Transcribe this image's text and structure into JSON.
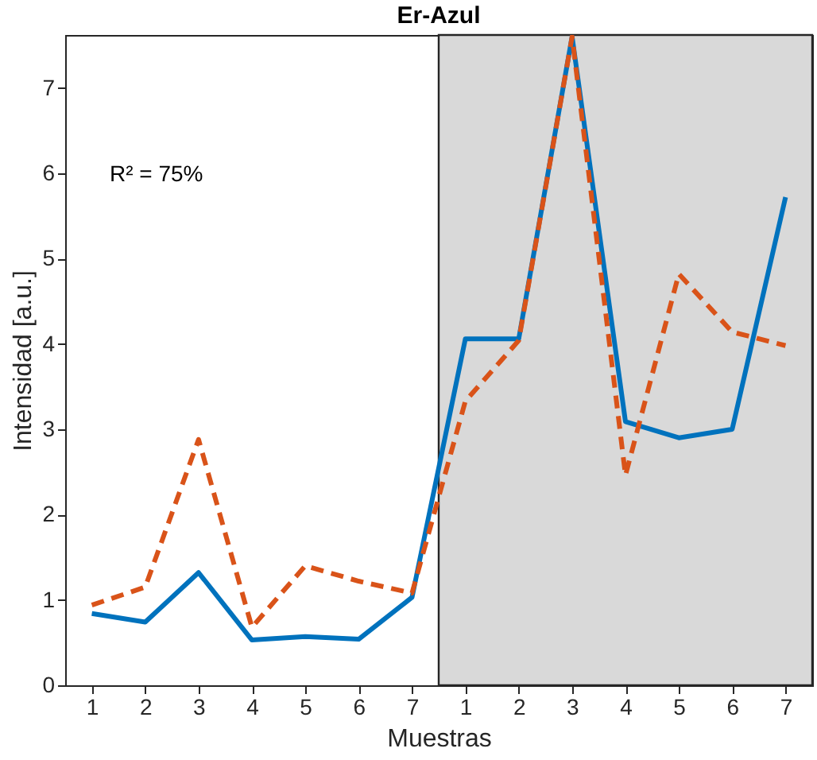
{
  "chart_data": {
    "type": "line",
    "title": "Er-Azul",
    "xlabel": "Muestras",
    "ylabel": "Intensidad [a.u.]",
    "categories": [
      "1",
      "2",
      "3",
      "4",
      "5",
      "6",
      "7",
      "1",
      "2",
      "3",
      "4",
      "5",
      "6",
      "7"
    ],
    "ylim": [
      0,
      7.62
    ],
    "yticks": [
      0,
      1,
      2,
      3,
      4,
      5,
      6,
      7
    ],
    "series": [
      {
        "color": "#0072bd",
        "line_style": "solid",
        "values": [
          0.84,
          0.74,
          1.32,
          0.53,
          0.57,
          0.54,
          1.03,
          4.06,
          4.06,
          7.6,
          3.09,
          2.9,
          3.0,
          5.72
        ]
      },
      {
        "color": "#d95319",
        "line_style": "dashed",
        "values": [
          0.94,
          1.15,
          2.88,
          0.68,
          1.4,
          1.22,
          1.08,
          3.33,
          4.04,
          7.6,
          2.46,
          4.82,
          4.14,
          3.98
        ]
      }
    ],
    "annotations": [
      "R² = 75%"
    ],
    "marker": "none",
    "grid": false
  }
}
